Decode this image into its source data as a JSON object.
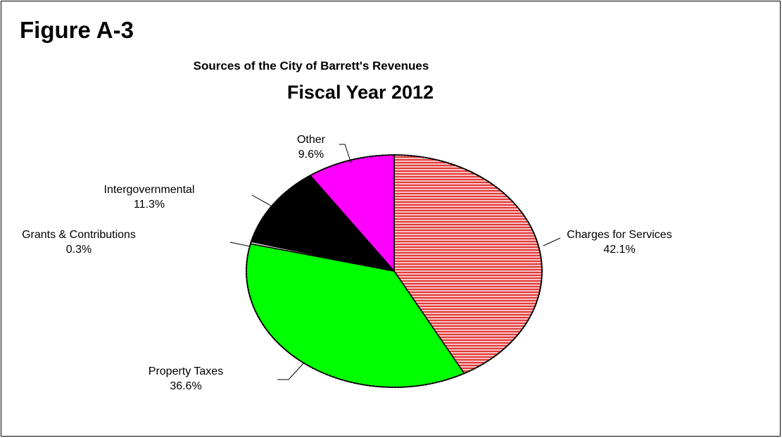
{
  "figure_label": "Figure A-3",
  "chart_data": {
    "type": "pie",
    "title": "Sources of the City of Barrett's Revenues",
    "subtitle": "Fiscal Year 2012",
    "slices": [
      {
        "name": "Charges for Services",
        "value": 42.1,
        "label": "42.1%",
        "color": "#ef5b5b"
      },
      {
        "name": "Property Taxes",
        "value": 36.6,
        "label": "36.6%",
        "color": "#00ff00"
      },
      {
        "name": "Grants & Contributions",
        "value": 0.3,
        "label": "0.3%",
        "color": "#ffffff"
      },
      {
        "name": "Intergovernmental",
        "value": 11.3,
        "label": "11.3%",
        "color": "#000000"
      },
      {
        "name": "Other",
        "value": 9.6,
        "label": "9.6%",
        "color": "#ff00ff"
      }
    ]
  }
}
